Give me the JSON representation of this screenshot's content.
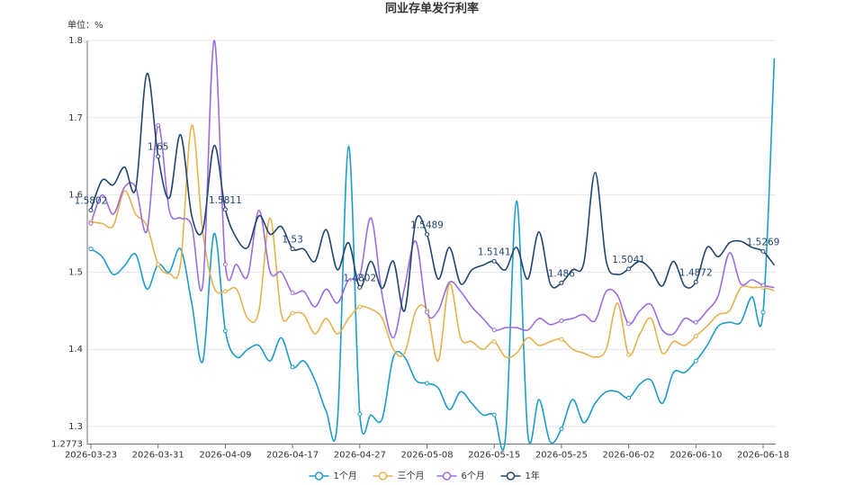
{
  "chart_data": {
    "type": "line",
    "title": "同业存单发行利率",
    "y_unit": "单位：%",
    "categories": [
      "2026-03-23",
      null,
      null,
      null,
      null,
      null,
      "2026-03-31",
      null,
      null,
      null,
      null,
      null,
      "2026-04-09",
      null,
      null,
      null,
      null,
      null,
      "2026-04-17",
      null,
      null,
      null,
      null,
      null,
      "2026-04-27",
      null,
      null,
      null,
      null,
      null,
      "2026-05-08",
      null,
      null,
      null,
      null,
      null,
      "2026-05-15",
      null,
      null,
      null,
      null,
      null,
      "2026-05-25",
      null,
      null,
      null,
      null,
      null,
      "2026-06-02",
      null,
      null,
      null,
      null,
      null,
      "2026-06-10",
      null,
      null,
      null,
      null,
      null,
      "2026-06-18",
      null
    ],
    "series": [
      {
        "name": "1个月",
        "color": "#1e9cc8",
        "values": [
          1.53,
          1.52,
          1.497,
          1.508,
          1.523,
          1.478,
          1.51,
          1.5,
          1.53,
          1.46,
          1.385,
          1.55,
          1.424,
          1.39,
          1.4,
          1.405,
          1.385,
          1.415,
          1.377,
          1.385,
          1.36,
          1.32,
          1.305,
          1.663,
          1.316,
          1.315,
          1.31,
          1.39,
          1.39,
          1.36,
          1.356,
          1.35,
          1.322,
          1.345,
          1.33,
          1.315,
          1.315,
          1.285,
          1.592,
          1.29,
          1.335,
          1.28,
          1.297,
          1.335,
          1.305,
          1.33,
          1.345,
          1.345,
          1.337,
          1.355,
          1.36,
          1.33,
          1.37,
          1.37,
          1.385,
          1.405,
          1.43,
          1.435,
          1.435,
          1.468,
          1.448,
          1.777
        ]
      },
      {
        "name": "三个月",
        "color": "#e5b24e",
        "values": [
          1.565,
          1.563,
          1.56,
          1.605,
          1.575,
          1.56,
          1.51,
          1.498,
          1.51,
          1.69,
          1.55,
          1.48,
          1.475,
          1.478,
          1.44,
          1.45,
          1.57,
          1.445,
          1.447,
          1.445,
          1.42,
          1.44,
          1.42,
          1.44,
          1.455,
          1.452,
          1.44,
          1.4,
          1.395,
          1.45,
          1.45,
          1.385,
          1.485,
          1.415,
          1.41,
          1.4,
          1.41,
          1.39,
          1.395,
          1.415,
          1.405,
          1.41,
          1.413,
          1.4,
          1.395,
          1.39,
          1.4,
          1.46,
          1.393,
          1.42,
          1.44,
          1.395,
          1.41,
          1.405,
          1.417,
          1.43,
          1.445,
          1.45,
          1.48,
          1.48,
          1.48,
          1.476
        ]
      },
      {
        "name": "6个月",
        "color": "#9a6ee0",
        "values": [
          1.563,
          1.6,
          1.575,
          1.61,
          1.61,
          1.553,
          1.69,
          1.58,
          1.57,
          1.56,
          1.485,
          1.8,
          1.51,
          1.51,
          1.495,
          1.58,
          1.5,
          1.5,
          1.473,
          1.475,
          1.455,
          1.478,
          1.46,
          1.49,
          1.495,
          1.57,
          1.47,
          1.415,
          1.48,
          1.54,
          1.448,
          1.45,
          1.487,
          1.475,
          1.455,
          1.44,
          1.425,
          1.428,
          1.428,
          1.425,
          1.44,
          1.432,
          1.437,
          1.44,
          1.445,
          1.437,
          1.475,
          1.47,
          1.433,
          1.45,
          1.458,
          1.425,
          1.42,
          1.44,
          1.435,
          1.45,
          1.47,
          1.525,
          1.485,
          1.49,
          1.483,
          1.48
        ]
      },
      {
        "name": "1年",
        "color": "#23466f",
        "values": [
          1.5802,
          1.619,
          1.613,
          1.636,
          1.608,
          1.757,
          1.65,
          1.596,
          1.678,
          1.573,
          1.555,
          1.664,
          1.5811,
          1.544,
          1.532,
          1.573,
          1.549,
          1.559,
          1.53,
          1.53,
          1.514,
          1.555,
          1.503,
          1.538,
          1.4802,
          1.514,
          1.479,
          1.514,
          1.45,
          1.567,
          1.5489,
          1.491,
          1.532,
          1.485,
          1.503,
          1.509,
          1.5141,
          1.503,
          1.532,
          1.491,
          1.552,
          1.485,
          1.486,
          1.503,
          1.512,
          1.629,
          1.514,
          1.497,
          1.5041,
          1.514,
          1.503,
          1.482,
          1.514,
          1.482,
          1.4872,
          1.532,
          1.52,
          1.538,
          1.54,
          1.532,
          1.5269,
          1.509
        ]
      }
    ],
    "labeled_series": 3,
    "ylim": [
      1.2773,
      1.8
    ],
    "yticks": [
      1.2773,
      1.3,
      1.4,
      1.5,
      1.6,
      1.7,
      1.8
    ],
    "grid": true,
    "smooth": true,
    "legend": "bottom"
  }
}
